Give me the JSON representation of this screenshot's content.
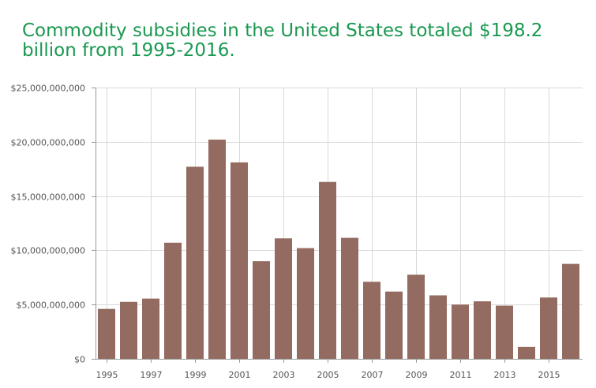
{
  "title": "Commodity subsidies in the United States totaled $198.2 billion from 1995-2016.",
  "chart_data": {
    "type": "bar",
    "bar_color": "#936b61",
    "title_color": "#1a9850",
    "categories": [
      "1995",
      "1996",
      "1997",
      "1998",
      "1999",
      "2000",
      "2001",
      "2002",
      "2003",
      "2004",
      "2005",
      "2006",
      "2007",
      "2008",
      "2009",
      "2010",
      "2011",
      "2012",
      "2013",
      "2014",
      "2015",
      "2016"
    ],
    "values": [
      4600000000,
      5250000000,
      5550000000,
      10700000000,
      17700000000,
      20200000000,
      18100000000,
      9000000000,
      11100000000,
      10200000000,
      16300000000,
      11150000000,
      7100000000,
      6200000000,
      7750000000,
      5850000000,
      5000000000,
      5300000000,
      4900000000,
      1100000000,
      5650000000,
      8750000000
    ],
    "x_tick_labels": [
      "1995",
      "1997",
      "1999",
      "2001",
      "2003",
      "2005",
      "2007",
      "2009",
      "2011",
      "2013",
      "2015"
    ],
    "y_ticks": [
      0,
      5000000000,
      10000000000,
      15000000000,
      20000000000,
      25000000000
    ],
    "y_tick_labels": [
      "$0",
      "$5,000,000,000",
      "$10,000,000,000",
      "$15,000,000,000",
      "$20,000,000,000",
      "$25,000,000,000"
    ],
    "ylim": [
      0,
      25000000000
    ],
    "grid": true,
    "xlabel": "",
    "ylabel": ""
  }
}
